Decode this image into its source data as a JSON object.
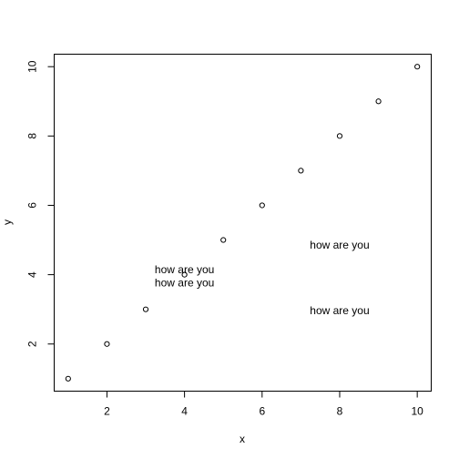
{
  "chart_data": {
    "type": "scatter",
    "title": "",
    "xlabel": "x",
    "ylabel": "y",
    "xlim": [
      0.64,
      10.36
    ],
    "ylim": [
      0.64,
      10.36
    ],
    "x_ticks": [
      2,
      4,
      6,
      8,
      10
    ],
    "y_ticks": [
      2,
      4,
      6,
      8,
      10
    ],
    "grid": false,
    "series": [
      {
        "x": [
          1,
          2,
          3,
          4,
          5,
          6,
          7,
          8,
          9,
          10
        ],
        "y": [
          1,
          2,
          3,
          4,
          5,
          6,
          7,
          8,
          9,
          10
        ],
        "marker": "open-circle",
        "color": "#000000"
      }
    ],
    "annotations": [
      {
        "text": "how are you",
        "x": 4,
        "y": 4.15
      },
      {
        "text": "how are you",
        "x": 4,
        "y": 3.77
      },
      {
        "text": "how are you",
        "x": 8,
        "y": 4.85
      },
      {
        "text": "how are you",
        "x": 8,
        "y": 2.96
      }
    ]
  }
}
